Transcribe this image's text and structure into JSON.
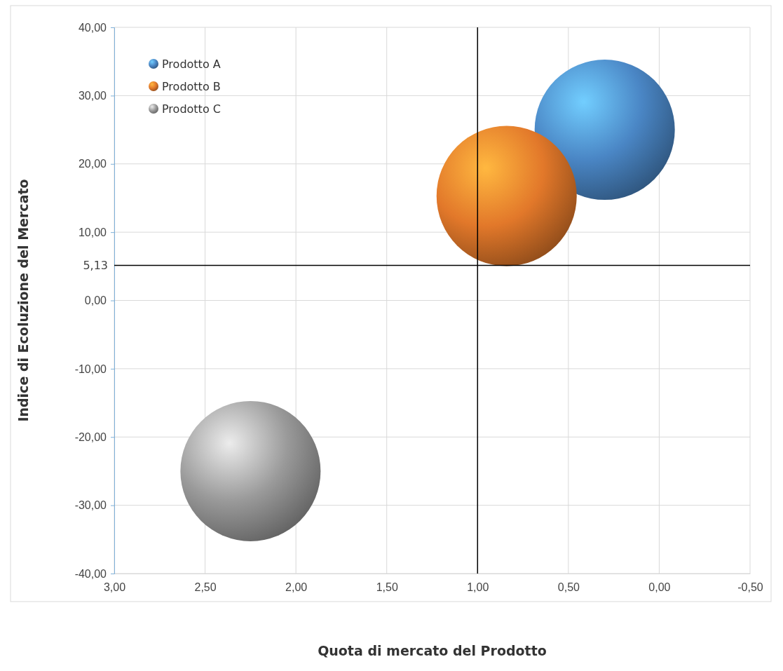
{
  "chart_data": {
    "type": "bubble",
    "xlabel": "Quota di mercato del Prodotto",
    "ylabel": "Indice di Ecoluzione del Mercato",
    "xlim": [
      3,
      -0.5
    ],
    "xticks": [
      {
        "value": 3,
        "label": "3,00"
      },
      {
        "value": 2.5,
        "label": "2,50"
      },
      {
        "value": 2,
        "label": "2,00"
      },
      {
        "value": 1.5,
        "label": "1,50"
      },
      {
        "value": 1,
        "label": "1,00"
      },
      {
        "value": 0.5,
        "label": "0,50"
      },
      {
        "value": 0,
        "label": "0,00"
      },
      {
        "value": -0.5,
        "label": "-0,50"
      }
    ],
    "ylim": [
      -40,
      40
    ],
    "yticks": [
      {
        "value": -40,
        "label": "-40,00"
      },
      {
        "value": -30,
        "label": "-30,00"
      },
      {
        "value": -20,
        "label": "-20,00"
      },
      {
        "value": -10,
        "label": "-10,00"
      },
      {
        "value": 0,
        "label": "0,00"
      },
      {
        "value": 10,
        "label": "10,00"
      },
      {
        "value": 20,
        "label": "20,00"
      },
      {
        "value": 30,
        "label": "30,00"
      },
      {
        "value": 40,
        "label": "40,00"
      }
    ],
    "grid": true,
    "legend": "top left",
    "ref_lines": [
      {
        "axis": "x",
        "value": 1,
        "color": "#000000"
      },
      {
        "axis": "y",
        "value": 5.13,
        "label": "5,13",
        "color": "#000000"
      }
    ],
    "series": [
      {
        "name": "Prodotto A",
        "color": "#4a86c5",
        "x": [
          0.3
        ],
        "values": [
          25
        ],
        "sizes": [
          1
        ]
      },
      {
        "name": "Prodotto B",
        "color": "#e2782a",
        "x": [
          0.84
        ],
        "values": [
          15.3
        ],
        "sizes": [
          1
        ]
      },
      {
        "name": "Prodotto C",
        "color": "#9a9a9a",
        "x": [
          2.25
        ],
        "values": [
          -25
        ],
        "sizes": [
          1
        ]
      }
    ]
  }
}
